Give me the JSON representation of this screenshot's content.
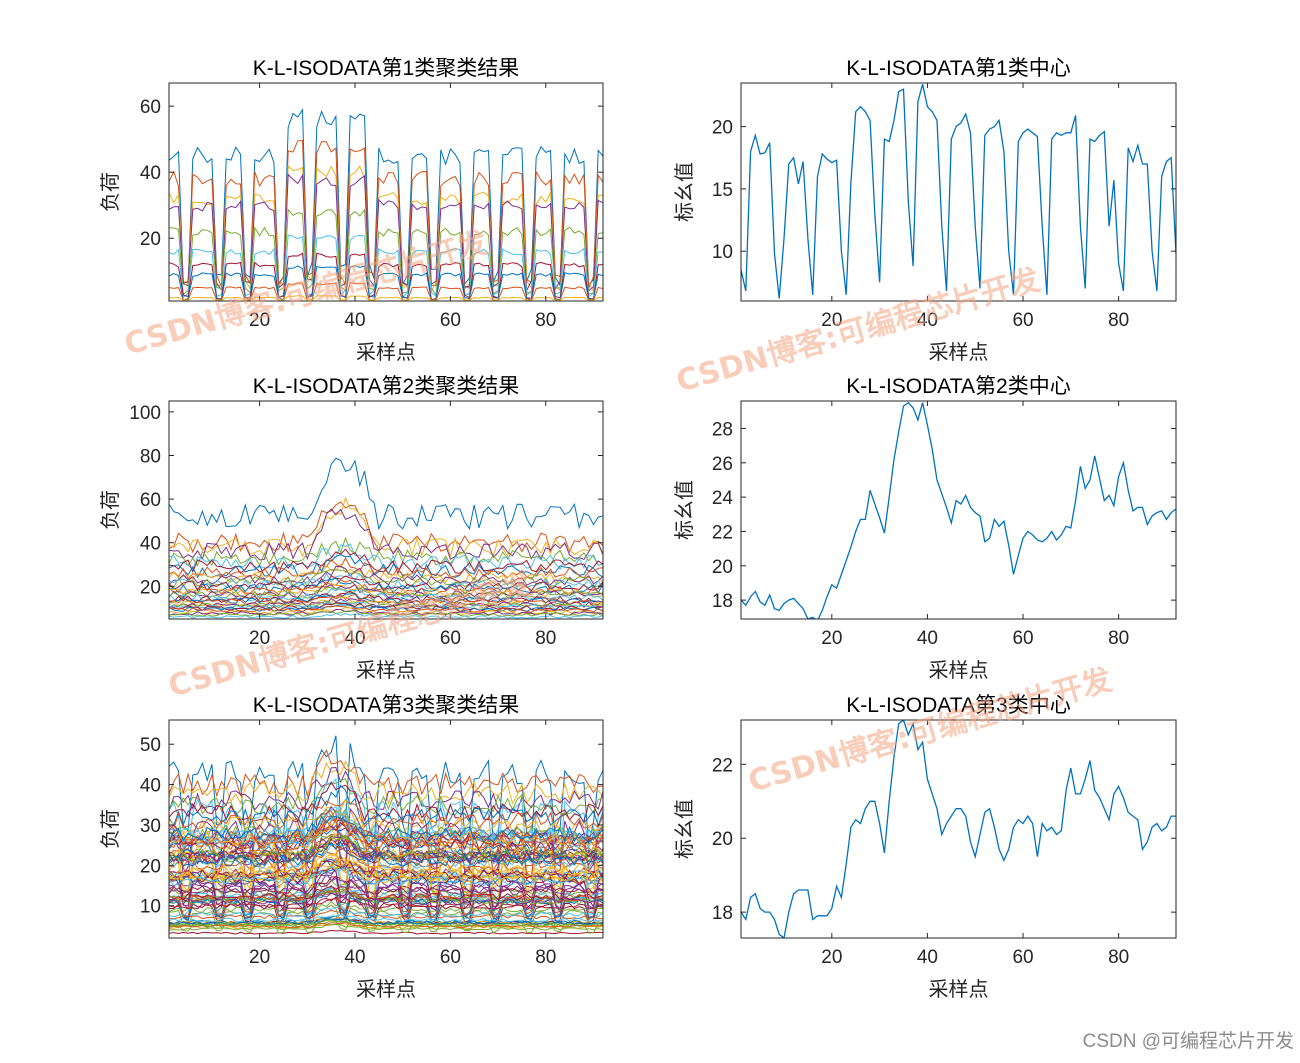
{
  "chart_data": [
    {
      "type": "line",
      "variant": "multi",
      "title": "K-L-ISODATA第1类聚类结果",
      "xlabel": "采样点",
      "ylabel": "负荷",
      "xlim": [
        1,
        92
      ],
      "ylim": [
        1,
        67
      ],
      "xticks": [
        20,
        40,
        60,
        80
      ],
      "yticks": [
        20,
        40,
        60
      ],
      "n_series": 10,
      "base_levels": [
        45,
        38,
        32,
        30,
        22,
        16,
        12,
        9,
        5,
        2
      ]
    },
    {
      "type": "line",
      "variant": "center",
      "title": "K-L-ISODATA第1类中心",
      "xlabel": "采样点",
      "ylabel": "标幺值",
      "xlim": [
        1,
        92
      ],
      "ylim": [
        6,
        23.5
      ],
      "xticks": [
        20,
        40,
        60,
        80
      ],
      "yticks": [
        10,
        15,
        20
      ],
      "x": [
        1,
        2,
        3,
        4,
        5,
        6,
        7,
        8,
        9,
        10,
        11,
        12,
        13,
        14,
        15,
        16,
        17,
        18,
        19,
        20,
        21,
        22,
        23,
        24,
        25,
        26,
        27,
        28,
        29,
        30,
        31,
        32,
        33,
        34,
        35,
        36,
        37,
        38,
        39,
        40,
        41,
        42,
        43,
        44,
        45,
        46,
        47,
        48,
        49,
        50,
        51,
        52,
        53,
        54,
        55,
        56,
        57,
        58,
        59,
        60,
        61,
        62,
        63,
        64,
        65,
        66,
        67,
        68,
        69,
        70,
        71,
        72,
        73,
        74,
        75,
        76,
        77,
        78,
        79,
        80,
        81,
        82,
        83,
        84,
        85,
        86,
        87,
        88,
        89,
        90,
        91,
        92
      ],
      "values": [
        8.5,
        6.8,
        18,
        19.3,
        17.8,
        17.9,
        18.7,
        9.8,
        6.2,
        11,
        17,
        17.5,
        15.4,
        17.2,
        11,
        6.5,
        16,
        17.8,
        17.4,
        17.1,
        17.3,
        10,
        6.5,
        15.5,
        21.2,
        21.6,
        21.2,
        20.5,
        13,
        7.5,
        19,
        18.8,
        20.5,
        22.8,
        23,
        14,
        8.8,
        22,
        23.4,
        21.6,
        21.2,
        20.5,
        12,
        6.8,
        19,
        20,
        20.3,
        21,
        19.5,
        12,
        7,
        19.3,
        19.8,
        20,
        20.5,
        18,
        10,
        6.5,
        18.8,
        19.5,
        19.8,
        19.5,
        19.2,
        12,
        6.5,
        19,
        19.5,
        19.3,
        19.5,
        19.5,
        20.9,
        12,
        7,
        19,
        18.8,
        19.3,
        19.6,
        12,
        15.7,
        9,
        6.8,
        18.3,
        17.2,
        18.5,
        17,
        17,
        10,
        6.8,
        16,
        17.2,
        17.5,
        9.8
      ]
    },
    {
      "type": "line",
      "variant": "multi",
      "title": "K-L-ISODATA第2类聚类结果",
      "xlabel": "采样点",
      "ylabel": "负荷",
      "xlim": [
        1,
        92
      ],
      "ylim": [
        5,
        105
      ],
      "xticks": [
        20,
        40,
        60,
        80
      ],
      "yticks": [
        20,
        40,
        60,
        80,
        100
      ],
      "n_series": 34,
      "base_levels": [
        52,
        40,
        38,
        36,
        33,
        31,
        29,
        27,
        26,
        24,
        23,
        22,
        21,
        20,
        19,
        18,
        17,
        16.5,
        16,
        15,
        14,
        13.5,
        13,
        12,
        11.5,
        11,
        10.5,
        10,
        9.5,
        9,
        8,
        7.5,
        7,
        6
      ]
    },
    {
      "type": "line",
      "variant": "center",
      "title": "K-L-ISODATA第2类中心",
      "xlabel": "采样点",
      "ylabel": "标幺值",
      "xlim": [
        1,
        92
      ],
      "ylim": [
        16.9,
        29.6
      ],
      "xticks": [
        20,
        40,
        60,
        80
      ],
      "yticks": [
        18,
        20,
        22,
        24,
        26,
        28
      ],
      "x": [
        1,
        2,
        3,
        4,
        5,
        6,
        7,
        8,
        9,
        10,
        11,
        12,
        13,
        14,
        15,
        16,
        17,
        18,
        19,
        20,
        21,
        22,
        23,
        24,
        25,
        26,
        27,
        28,
        29,
        30,
        31,
        32,
        33,
        34,
        35,
        36,
        37,
        38,
        39,
        40,
        41,
        42,
        43,
        44,
        45,
        46,
        47,
        48,
        49,
        50,
        51,
        52,
        53,
        54,
        55,
        56,
        57,
        58,
        59,
        60,
        61,
        62,
        63,
        64,
        65,
        66,
        67,
        68,
        69,
        70,
        71,
        72,
        73,
        74,
        75,
        76,
        77,
        78,
        79,
        80,
        81,
        82,
        83,
        84,
        85,
        86,
        87,
        88,
        89,
        90,
        91,
        92
      ],
      "values": [
        18,
        17.7,
        18.2,
        18.5,
        17.9,
        17.7,
        18.3,
        17.5,
        17.4,
        17.8,
        18,
        18.1,
        17.8,
        17.5,
        16.9,
        17,
        16.8,
        17.4,
        18.2,
        18.9,
        18.7,
        19.5,
        20.3,
        21.1,
        22,
        22.7,
        22.7,
        24.4,
        23.6,
        22.8,
        21.9,
        24,
        26.2,
        27.8,
        29.3,
        29.5,
        29.2,
        28.5,
        29.5,
        28.2,
        26.8,
        25,
        24.2,
        23.4,
        22.5,
        23.8,
        23.6,
        24.1,
        23.4,
        23.1,
        22.9,
        21.4,
        21.6,
        22.7,
        22.3,
        22.6,
        21.2,
        19.5,
        20.6,
        21.6,
        22,
        21.8,
        21.5,
        21.4,
        21.6,
        22,
        21.5,
        21.8,
        22.3,
        22.2,
        23.8,
        25.8,
        24.5,
        25,
        26.4,
        25.1,
        23.8,
        24.1,
        23.5,
        25.2,
        26,
        24.4,
        23.2,
        23.4,
        23.4,
        22.4,
        22.9,
        23.1,
        23.2,
        22.7,
        23.1,
        23.3
      ]
    },
    {
      "type": "line",
      "variant": "multi",
      "title": "K-L-ISODATA第3类聚类结果",
      "xlabel": "采样点",
      "ylabel": "负荷",
      "xlim": [
        1,
        92
      ],
      "ylim": [
        2,
        56
      ],
      "xticks": [
        20,
        40,
        60,
        80
      ],
      "yticks": [
        10,
        20,
        30,
        40,
        50
      ],
      "n_series": 90,
      "base_levels": [
        43,
        40,
        38,
        36,
        35,
        34,
        33,
        32,
        31,
        30,
        29,
        28,
        27
      ]
    },
    {
      "type": "line",
      "variant": "center",
      "title": "K-L-ISODATA第3类中心",
      "xlabel": "采样点",
      "ylabel": "标幺值",
      "xlim": [
        1,
        92
      ],
      "ylim": [
        17.3,
        23.2
      ],
      "xticks": [
        20,
        40,
        60,
        80
      ],
      "yticks": [
        18,
        20,
        22
      ],
      "x": [
        1,
        2,
        3,
        4,
        5,
        6,
        7,
        8,
        9,
        10,
        11,
        12,
        13,
        14,
        15,
        16,
        17,
        18,
        19,
        20,
        21,
        22,
        23,
        24,
        25,
        26,
        27,
        28,
        29,
        30,
        31,
        32,
        33,
        34,
        35,
        36,
        37,
        38,
        39,
        40,
        41,
        42,
        43,
        44,
        45,
        46,
        47,
        48,
        49,
        50,
        51,
        52,
        53,
        54,
        55,
        56,
        57,
        58,
        59,
        60,
        61,
        62,
        63,
        64,
        65,
        66,
        67,
        68,
        69,
        70,
        71,
        72,
        73,
        74,
        75,
        76,
        77,
        78,
        79,
        80,
        81,
        82,
        83,
        84,
        85,
        86,
        87,
        88,
        89,
        90,
        91,
        92
      ],
      "values": [
        18,
        17.8,
        18.4,
        18.5,
        18.1,
        18,
        18,
        17.8,
        17.4,
        17.3,
        18,
        18.5,
        18.6,
        18.6,
        18.6,
        17.8,
        17.9,
        17.9,
        17.9,
        18.1,
        18.7,
        18.4,
        19.3,
        20.3,
        20.5,
        20.4,
        20.8,
        21,
        21,
        20.4,
        19.6,
        21,
        22.2,
        23.1,
        23.2,
        22.8,
        23.1,
        22.4,
        22.6,
        21.6,
        21.2,
        20.8,
        20.1,
        20.4,
        20.6,
        20.8,
        20.8,
        20.6,
        19.9,
        19.5,
        20.1,
        20.7,
        20.8,
        20.3,
        19.7,
        19.4,
        19.7,
        20.3,
        20.5,
        20.4,
        20.6,
        20.4,
        19.5,
        20.4,
        20.2,
        20.3,
        20.1,
        20.2,
        21.3,
        21.9,
        21.2,
        21.2,
        21.6,
        22.1,
        21.3,
        21.1,
        20.8,
        20.5,
        21.2,
        21.4,
        21.1,
        20.7,
        20.6,
        20.5,
        19.7,
        19.9,
        20.3,
        20.4,
        20.2,
        20.3,
        20.6,
        20.6
      ]
    }
  ],
  "watermarks": [
    "CSDN博客:可编程芯片开发",
    "CSDN博客:可编程芯片开发",
    "CSDN博客:可编程芯片开发",
    "CSDN博客:可编程芯片开发"
  ],
  "footer": "CSDN @可编程芯片开发",
  "colors": {
    "axis": "#262626",
    "center_line": "#0072BD",
    "palette": [
      "#0072BD",
      "#D95319",
      "#EDB120",
      "#7E2F8E",
      "#77AC30",
      "#4DBEEE",
      "#A2142F"
    ]
  }
}
